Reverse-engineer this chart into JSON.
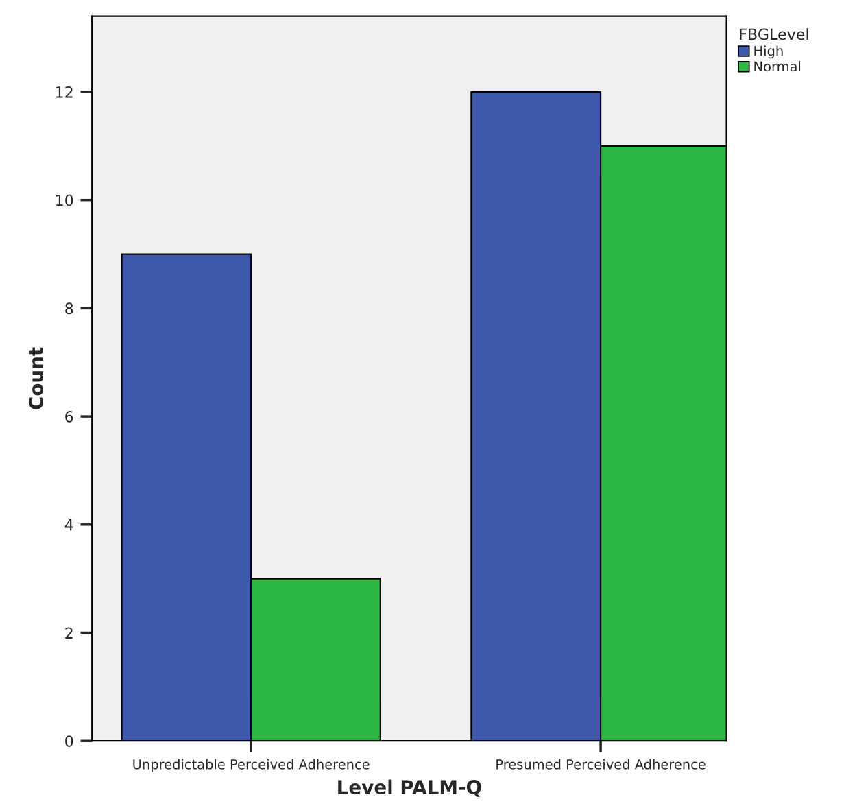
{
  "chart_data": {
    "type": "bar",
    "xlabel": "Level PALM-Q",
    "ylabel": "Count",
    "legend_title": "FBGLevel",
    "categories": [
      "Unpredictable Perceived Adherence",
      "Presumed Perceived Adherence"
    ],
    "series": [
      {
        "name": "High",
        "color": "#3e58ac",
        "values": [
          9,
          12
        ]
      },
      {
        "name": "Normal",
        "color": "#2db846",
        "values": [
          3,
          11
        ]
      }
    ],
    "ylim": [
      0,
      13.4
    ],
    "yticks": [
      0,
      2,
      4,
      6,
      8,
      10,
      12
    ],
    "grid": false,
    "legend": "top right"
  }
}
